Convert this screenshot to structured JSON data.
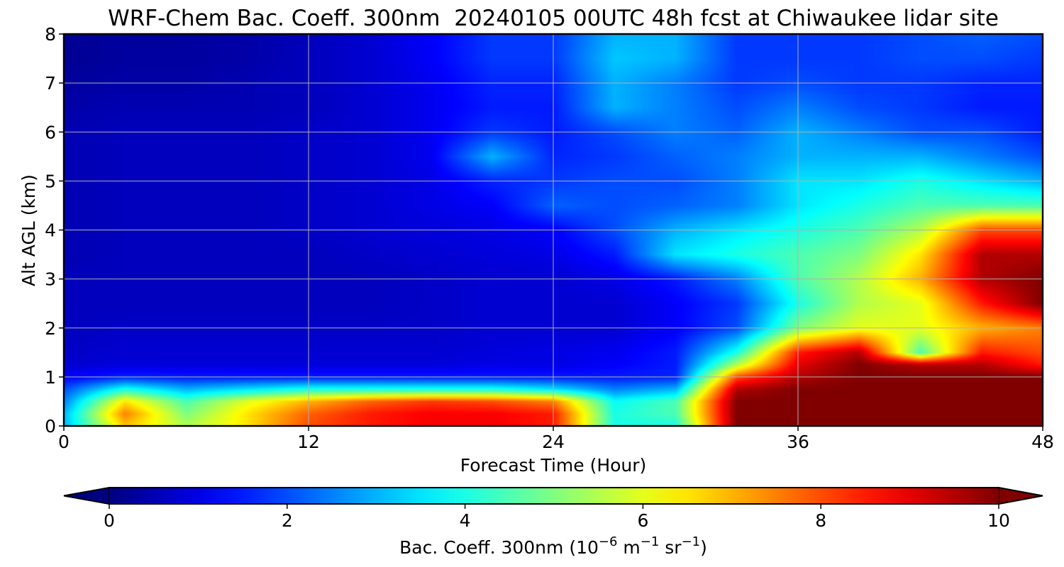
{
  "chart_data": {
    "type": "heatmap",
    "title": "WRF-Chem Bac. Coeff. 300nm  20240105 00UTC 48h fcst at Chiwaukee lidar site",
    "xlabel": "Forecast Time (Hour)",
    "ylabel": "Alt AGL (km)",
    "xlim": [
      0,
      48
    ],
    "ylim": [
      0,
      8
    ],
    "xticks": [
      "0",
      "12",
      "24",
      "36",
      "48"
    ],
    "yticks": [
      "0",
      "1",
      "2",
      "3",
      "4",
      "5",
      "6",
      "7",
      "8"
    ],
    "grid": true,
    "colormap": "jet",
    "colorbar": {
      "label_main": "Bac. Coeff. 300nm  (10",
      "exp1": "−6",
      "label_mid": " m",
      "exp2": "−1",
      "label_mid2": " sr",
      "exp3": "−1",
      "label_end": ")",
      "range": [
        0,
        10
      ],
      "ticks": [
        "0",
        "2",
        "4",
        "6",
        "8",
        "10"
      ],
      "extend": "both"
    },
    "x": [
      0,
      3,
      6,
      9,
      12,
      15,
      18,
      21,
      24,
      27,
      30,
      33,
      36,
      39,
      42,
      45,
      48
    ],
    "y": [
      0,
      0.25,
      0.5,
      0.75,
      1.0,
      1.25,
      1.5,
      2.0,
      2.5,
      3.0,
      3.5,
      4.0,
      4.5,
      5.0,
      5.5,
      6.0,
      6.5,
      7.0,
      7.5,
      8.0
    ],
    "z": [
      [
        3.0,
        6.8,
        5.5,
        6.5,
        8.0,
        8.5,
        8.8,
        8.8,
        8.5,
        4.0,
        4.0,
        10.0,
        10.0,
        10.0,
        10.0,
        10.0,
        10.0
      ],
      [
        3.0,
        7.5,
        5.0,
        6.5,
        7.8,
        8.5,
        8.8,
        8.8,
        8.5,
        4.0,
        4.5,
        10.0,
        10.0,
        10.0,
        10.0,
        10.0,
        10.0
      ],
      [
        2.5,
        6.5,
        4.5,
        6.0,
        7.0,
        7.8,
        8.2,
        8.0,
        7.5,
        3.8,
        4.5,
        10.0,
        10.0,
        10.0,
        10.0,
        10.0,
        10.0
      ],
      [
        2.0,
        4.0,
        3.0,
        3.5,
        4.0,
        4.0,
        4.0,
        4.0,
        3.5,
        2.5,
        3.0,
        9.5,
        10.0,
        10.0,
        10.0,
        10.0,
        10.0
      ],
      [
        1.2,
        1.6,
        1.5,
        1.5,
        1.5,
        1.5,
        1.5,
        1.5,
        1.5,
        1.5,
        1.6,
        8.0,
        9.5,
        10.0,
        10.0,
        10.0,
        10.0
      ],
      [
        0.8,
        0.9,
        0.9,
        0.9,
        0.9,
        0.9,
        0.9,
        1.0,
        1.0,
        1.2,
        1.5,
        5.5,
        9.0,
        10.0,
        9.5,
        9.5,
        8.5
      ],
      [
        0.7,
        0.8,
        0.8,
        0.8,
        0.8,
        0.8,
        0.8,
        0.9,
        1.0,
        1.1,
        1.5,
        4.0,
        8.5,
        9.5,
        4.5,
        8.5,
        8.0
      ],
      [
        0.6,
        0.7,
        0.7,
        0.7,
        0.7,
        0.7,
        0.7,
        0.8,
        0.8,
        0.8,
        1.2,
        2.0,
        5.0,
        6.0,
        6.0,
        7.0,
        7.5
      ],
      [
        0.6,
        0.6,
        0.6,
        0.6,
        0.6,
        0.6,
        0.7,
        0.8,
        0.8,
        0.8,
        1.2,
        1.8,
        4.0,
        5.5,
        6.0,
        8.5,
        10.0
      ],
      [
        0.6,
        0.6,
        0.6,
        0.6,
        0.6,
        0.6,
        0.7,
        0.8,
        0.8,
        1.0,
        1.5,
        2.5,
        4.5,
        5.5,
        7.0,
        9.5,
        10.0
      ],
      [
        0.5,
        0.6,
        0.6,
        0.6,
        0.6,
        0.7,
        0.8,
        0.9,
        1.0,
        1.5,
        3.5,
        4.0,
        4.5,
        5.0,
        6.5,
        9.5,
        9.5
      ],
      [
        0.5,
        0.6,
        0.6,
        0.6,
        0.7,
        0.8,
        0.9,
        1.0,
        1.2,
        2.0,
        3.0,
        3.5,
        4.0,
        4.5,
        5.5,
        8.0,
        8.0
      ],
      [
        0.5,
        0.6,
        0.6,
        0.6,
        0.7,
        0.8,
        1.0,
        1.2,
        2.2,
        2.0,
        2.2,
        2.5,
        3.5,
        4.0,
        4.5,
        4.5,
        4.5
      ],
      [
        0.5,
        0.6,
        0.6,
        0.6,
        0.7,
        0.8,
        1.0,
        1.6,
        1.8,
        2.0,
        2.0,
        2.5,
        3.5,
        3.5,
        4.0,
        3.5,
        3.0
      ],
      [
        0.5,
        0.6,
        0.6,
        0.6,
        0.7,
        0.8,
        1.1,
        3.0,
        1.6,
        1.8,
        2.2,
        2.5,
        3.0,
        3.0,
        3.0,
        2.5,
        2.0
      ],
      [
        0.5,
        0.6,
        0.6,
        0.6,
        0.7,
        0.8,
        1.1,
        1.8,
        1.5,
        2.0,
        2.5,
        2.2,
        3.0,
        2.5,
        2.0,
        2.0,
        1.5
      ],
      [
        0.4,
        0.5,
        0.5,
        0.5,
        0.6,
        0.8,
        1.1,
        1.5,
        1.5,
        3.0,
        2.5,
        2.0,
        2.5,
        2.0,
        1.8,
        1.5,
        1.5
      ],
      [
        0.3,
        0.4,
        0.4,
        0.5,
        0.6,
        0.8,
        1.1,
        1.6,
        1.6,
        3.0,
        2.5,
        1.8,
        2.0,
        1.8,
        1.8,
        1.6,
        1.6
      ],
      [
        0.2,
        0.3,
        0.3,
        0.4,
        0.6,
        0.8,
        1.2,
        1.8,
        1.8,
        3.2,
        3.0,
        1.8,
        1.8,
        1.8,
        2.0,
        2.0,
        1.8
      ],
      [
        0.2,
        0.3,
        0.3,
        0.4,
        0.6,
        0.8,
        1.2,
        1.8,
        1.8,
        3.0,
        3.0,
        1.8,
        1.8,
        1.8,
        2.0,
        2.2,
        2.0
      ]
    ]
  }
}
